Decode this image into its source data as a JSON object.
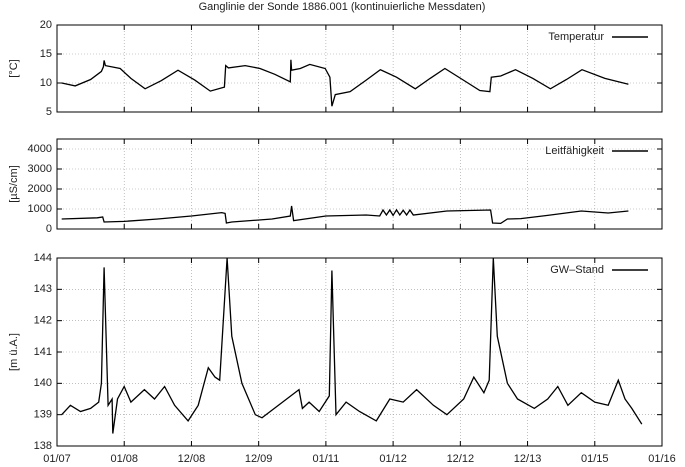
{
  "chart_data": [
    {
      "type": "line",
      "title": "Ganglinie der Sonde 1886.001 (kontinuierliche Messdaten)",
      "ylabel": "[°C]",
      "xlim": [
        0,
        9
      ],
      "ylim": [
        5,
        20
      ],
      "yticks": [
        5,
        10,
        15,
        20
      ],
      "grid": true,
      "legend": "upper right",
      "x": [
        0.07,
        0.27,
        0.5,
        0.66,
        0.69,
        0.7,
        0.72,
        0.94,
        1.1,
        1.31,
        1.55,
        1.8,
        2.05,
        2.28,
        2.49,
        2.51,
        2.55,
        2.8,
        3.02,
        3.24,
        3.47,
        3.48,
        3.49,
        3.62,
        3.76,
        3.99,
        4.06,
        4.09,
        4.14,
        4.36,
        4.6,
        4.81,
        5.05,
        5.33,
        5.55,
        5.77,
        6.03,
        6.29,
        6.44,
        6.46,
        6.6,
        6.82,
        7.08,
        7.34,
        7.58,
        7.81,
        8.15,
        8.5
      ],
      "series": [
        {
          "name": "Temperatur",
          "color": "#000000",
          "values": [
            10,
            9.5,
            10.6,
            12,
            12.8,
            13.9,
            13,
            12.5,
            10.8,
            9,
            10.4,
            12.2,
            10.5,
            8.6,
            9.3,
            13,
            12.6,
            13,
            12.5,
            11.5,
            10.2,
            14,
            12.2,
            12.5,
            13.2,
            12.5,
            11,
            6,
            8,
            8.5,
            10.5,
            12.3,
            11,
            9,
            10.8,
            12.5,
            10.6,
            8.7,
            8.5,
            11,
            11.2,
            12.3,
            10.8,
            9,
            10.6,
            12.3,
            10.8,
            9.8
          ]
        }
      ]
    },
    {
      "type": "line",
      "ylabel": "[µS/cm]",
      "xlim": [
        0,
        9
      ],
      "ylim": [
        0,
        4500
      ],
      "yticks": [
        0,
        1000,
        2000,
        3000,
        4000
      ],
      "grid": true,
      "legend": "upper right",
      "x": [
        0.07,
        0.6,
        0.68,
        0.7,
        1.0,
        1.5,
        2.0,
        2.45,
        2.5,
        2.52,
        2.6,
        3.2,
        3.47,
        3.49,
        3.52,
        4.0,
        4.6,
        4.8,
        4.85,
        4.9,
        4.95,
        5.0,
        5.05,
        5.1,
        5.15,
        5.2,
        5.25,
        5.3,
        5.8,
        6.45,
        6.48,
        6.6,
        6.7,
        6.9,
        7.3,
        7.8,
        8.2,
        8.5
      ],
      "series": [
        {
          "name": "Leitfähigkeit",
          "color": "#000000",
          "values": [
            500,
            560,
            600,
            350,
            380,
            500,
            650,
            820,
            780,
            300,
            350,
            500,
            650,
            1150,
            420,
            650,
            700,
            650,
            950,
            700,
            950,
            680,
            960,
            700,
            940,
            700,
            950,
            700,
            900,
            950,
            300,
            280,
            500,
            520,
            680,
            900,
            800,
            900
          ]
        }
      ]
    },
    {
      "type": "line",
      "ylabel": "[m ü.A.]",
      "xlim": [
        0,
        9
      ],
      "ylim": [
        138,
        144
      ],
      "grid": true,
      "legend": "upper right",
      "xticks": [
        {
          "value": 0,
          "label": "01/07"
        },
        {
          "value": 1,
          "label": "01/08"
        },
        {
          "value": 2,
          "label": "12/08"
        },
        {
          "value": 3,
          "label": "12/09"
        },
        {
          "value": 4,
          "label": "01/11"
        },
        {
          "value": 5,
          "label": "01/12"
        },
        {
          "value": 6,
          "label": "12/12"
        },
        {
          "value": 7,
          "label": "12/13"
        },
        {
          "value": 8,
          "label": "01/15"
        },
        {
          "value": 9,
          "label": "01/16"
        }
      ],
      "yticks": [
        138,
        139,
        140,
        141,
        142,
        143,
        144
      ],
      "x": [
        0.07,
        0.2,
        0.35,
        0.5,
        0.62,
        0.66,
        0.7,
        0.76,
        0.82,
        0.83,
        0.9,
        1.0,
        1.1,
        1.3,
        1.45,
        1.6,
        1.75,
        1.95,
        2.1,
        2.25,
        2.35,
        2.42,
        2.53,
        2.6,
        2.75,
        2.95,
        3.05,
        3.6,
        3.65,
        3.75,
        3.9,
        4.05,
        4.09,
        4.15,
        4.3,
        4.5,
        4.75,
        4.95,
        5.15,
        5.35,
        5.6,
        5.8,
        6.05,
        6.2,
        6.35,
        6.43,
        6.49,
        6.55,
        6.7,
        6.85,
        7.1,
        7.3,
        7.45,
        7.6,
        7.8,
        8.0,
        8.2,
        8.35,
        8.45,
        8.55,
        8.7
      ],
      "series": [
        {
          "name": "GW–Stand",
          "color": "#000000",
          "values": [
            139,
            139.3,
            139.1,
            139.2,
            139.4,
            140,
            143.7,
            139.3,
            139.5,
            138.4,
            139.5,
            139.9,
            139.4,
            139.8,
            139.5,
            139.9,
            139.3,
            138.8,
            139.3,
            140.5,
            140.2,
            140.1,
            144,
            141.5,
            140,
            139,
            138.9,
            139.8,
            139.2,
            139.4,
            139.1,
            139.6,
            143.6,
            139,
            139.4,
            139.1,
            138.8,
            139.5,
            139.4,
            139.8,
            139.3,
            139,
            139.5,
            140.2,
            139.7,
            140.1,
            144,
            141.5,
            140,
            139.5,
            139.2,
            139.5,
            139.9,
            139.3,
            139.7,
            139.4,
            139.3,
            140.1,
            139.5,
            139.2,
            138.7
          ]
        }
      ]
    }
  ]
}
